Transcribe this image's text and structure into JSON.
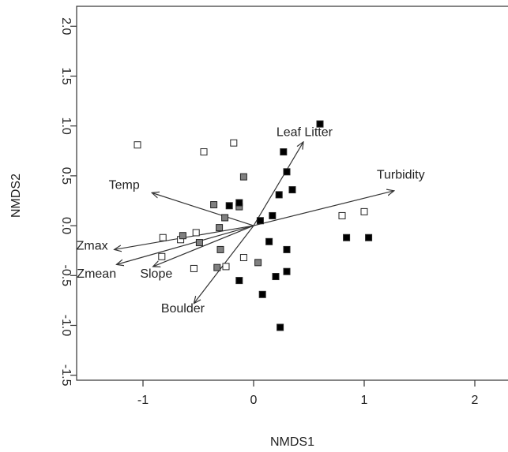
{
  "chart_data": {
    "type": "scatter",
    "title": "",
    "xlabel": "NMDS1",
    "ylabel": "NMDS2",
    "xlim": [
      -1.6,
      2.3
    ],
    "ylim": [
      -1.55,
      2.2
    ],
    "xticks": [
      {
        "value": -1,
        "label": "-1"
      },
      {
        "value": 0,
        "label": "0"
      },
      {
        "value": 1,
        "label": "1"
      },
      {
        "value": 2,
        "label": "2"
      }
    ],
    "yticks": [
      {
        "value": -1.5,
        "label": "-1.5"
      },
      {
        "value": -1.0,
        "label": "-1.0"
      },
      {
        "value": -0.5,
        "label": "-0.5"
      },
      {
        "value": 0.0,
        "label": "0.0"
      },
      {
        "value": 0.5,
        "label": "0.5"
      },
      {
        "value": 1.0,
        "label": "1.0"
      },
      {
        "value": 1.5,
        "label": "1.5"
      },
      {
        "value": 2.0,
        "label": "2.0"
      }
    ],
    "grid": false,
    "legend": "none",
    "series": [
      {
        "fill": "#ffffff",
        "points": [
          {
            "x": -1.05,
            "y": 0.81
          },
          {
            "x": -0.45,
            "y": 0.74
          },
          {
            "x": -0.18,
            "y": 0.83
          },
          {
            "x": -0.82,
            "y": -0.12
          },
          {
            "x": -0.66,
            "y": -0.14
          },
          {
            "x": -0.52,
            "y": -0.07
          },
          {
            "x": -0.83,
            "y": -0.31
          },
          {
            "x": -0.54,
            "y": -0.43
          },
          {
            "x": -0.25,
            "y": -0.41
          },
          {
            "x": -0.09,
            "y": -0.32
          },
          {
            "x": 0.8,
            "y": 0.1
          },
          {
            "x": 1.0,
            "y": 0.14
          }
        ]
      },
      {
        "fill": "#808080",
        "points": [
          {
            "x": -0.09,
            "y": 0.49
          },
          {
            "x": -0.36,
            "y": 0.21
          },
          {
            "x": -0.13,
            "y": 0.19
          },
          {
            "x": -0.26,
            "y": 0.08
          },
          {
            "x": -0.31,
            "y": -0.02
          },
          {
            "x": -0.64,
            "y": -0.1
          },
          {
            "x": -0.49,
            "y": -0.17
          },
          {
            "x": -0.3,
            "y": -0.24
          },
          {
            "x": -0.33,
            "y": -0.42
          },
          {
            "x": 0.04,
            "y": -0.37
          }
        ]
      },
      {
        "fill": "#000000",
        "points": [
          {
            "x": 0.6,
            "y": 1.02
          },
          {
            "x": 0.27,
            "y": 0.74
          },
          {
            "x": 0.3,
            "y": 0.54
          },
          {
            "x": 0.35,
            "y": 0.36
          },
          {
            "x": 0.23,
            "y": 0.31
          },
          {
            "x": -0.22,
            "y": 0.2
          },
          {
            "x": -0.13,
            "y": 0.23
          },
          {
            "x": 0.06,
            "y": 0.05
          },
          {
            "x": 0.17,
            "y": 0.1
          },
          {
            "x": 0.14,
            "y": -0.16
          },
          {
            "x": 0.3,
            "y": -0.24
          },
          {
            "x": 0.2,
            "y": -0.51
          },
          {
            "x": 0.3,
            "y": -0.46
          },
          {
            "x": -0.13,
            "y": -0.55
          },
          {
            "x": 0.08,
            "y": -0.69
          },
          {
            "x": 0.24,
            "y": -1.02
          },
          {
            "x": 0.84,
            "y": -0.12
          },
          {
            "x": 1.04,
            "y": -0.12
          }
        ]
      }
    ],
    "vectors": [
      {
        "label": "Leaf Litter",
        "x": 0.45,
        "y": 0.84,
        "label_x": 0.46,
        "label_y": 0.9
      },
      {
        "label": "Turbidity",
        "x": 1.27,
        "y": 0.35,
        "label_x": 1.33,
        "label_y": 0.47
      },
      {
        "label": "Temp",
        "x": -0.92,
        "y": 0.33,
        "label_x": -1.17,
        "label_y": 0.37
      },
      {
        "label": "Zmax",
        "x": -1.26,
        "y": -0.24,
        "label_x": -1.46,
        "label_y": -0.24
      },
      {
        "label": "Zmean",
        "x": -1.24,
        "y": -0.39,
        "label_x": -1.42,
        "label_y": -0.52
      },
      {
        "label": "Slope",
        "x": -0.91,
        "y": -0.41,
        "label_x": -0.88,
        "label_y": -0.52
      },
      {
        "label": "Boulder",
        "x": -0.54,
        "y": -0.78,
        "label_x": -0.64,
        "label_y": -0.87
      }
    ],
    "colors": {
      "axis": "#333333",
      "marker_edge": "#222222",
      "vector": "#333333"
    }
  }
}
